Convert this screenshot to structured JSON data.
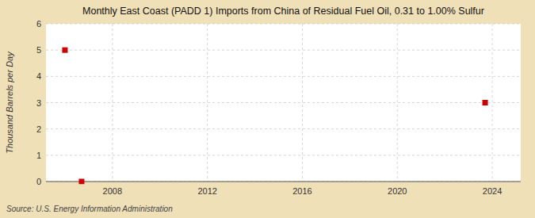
{
  "chart_data": {
    "type": "scatter",
    "title": "Monthly East Coast (PADD 1) Imports from China of Residual Fuel Oil, 0.31 to 1.00% Sulfur",
    "y_label": "Thousand Barrels per Day",
    "source": "Source: U.S. Energy Information Administration",
    "x": [
      2006.0,
      2006.7,
      2023.7
    ],
    "values": [
      5.0,
      0.0,
      3.0
    ],
    "color": "#cc0000",
    "marker": "square",
    "xlim": [
      2005.2,
      2025.2
    ],
    "ylim": [
      0,
      6
    ],
    "xticks": [
      2008,
      2012,
      2016,
      2020,
      2024
    ],
    "yticks": [
      0,
      1,
      2,
      3,
      4,
      5,
      6
    ],
    "grid": true
  }
}
